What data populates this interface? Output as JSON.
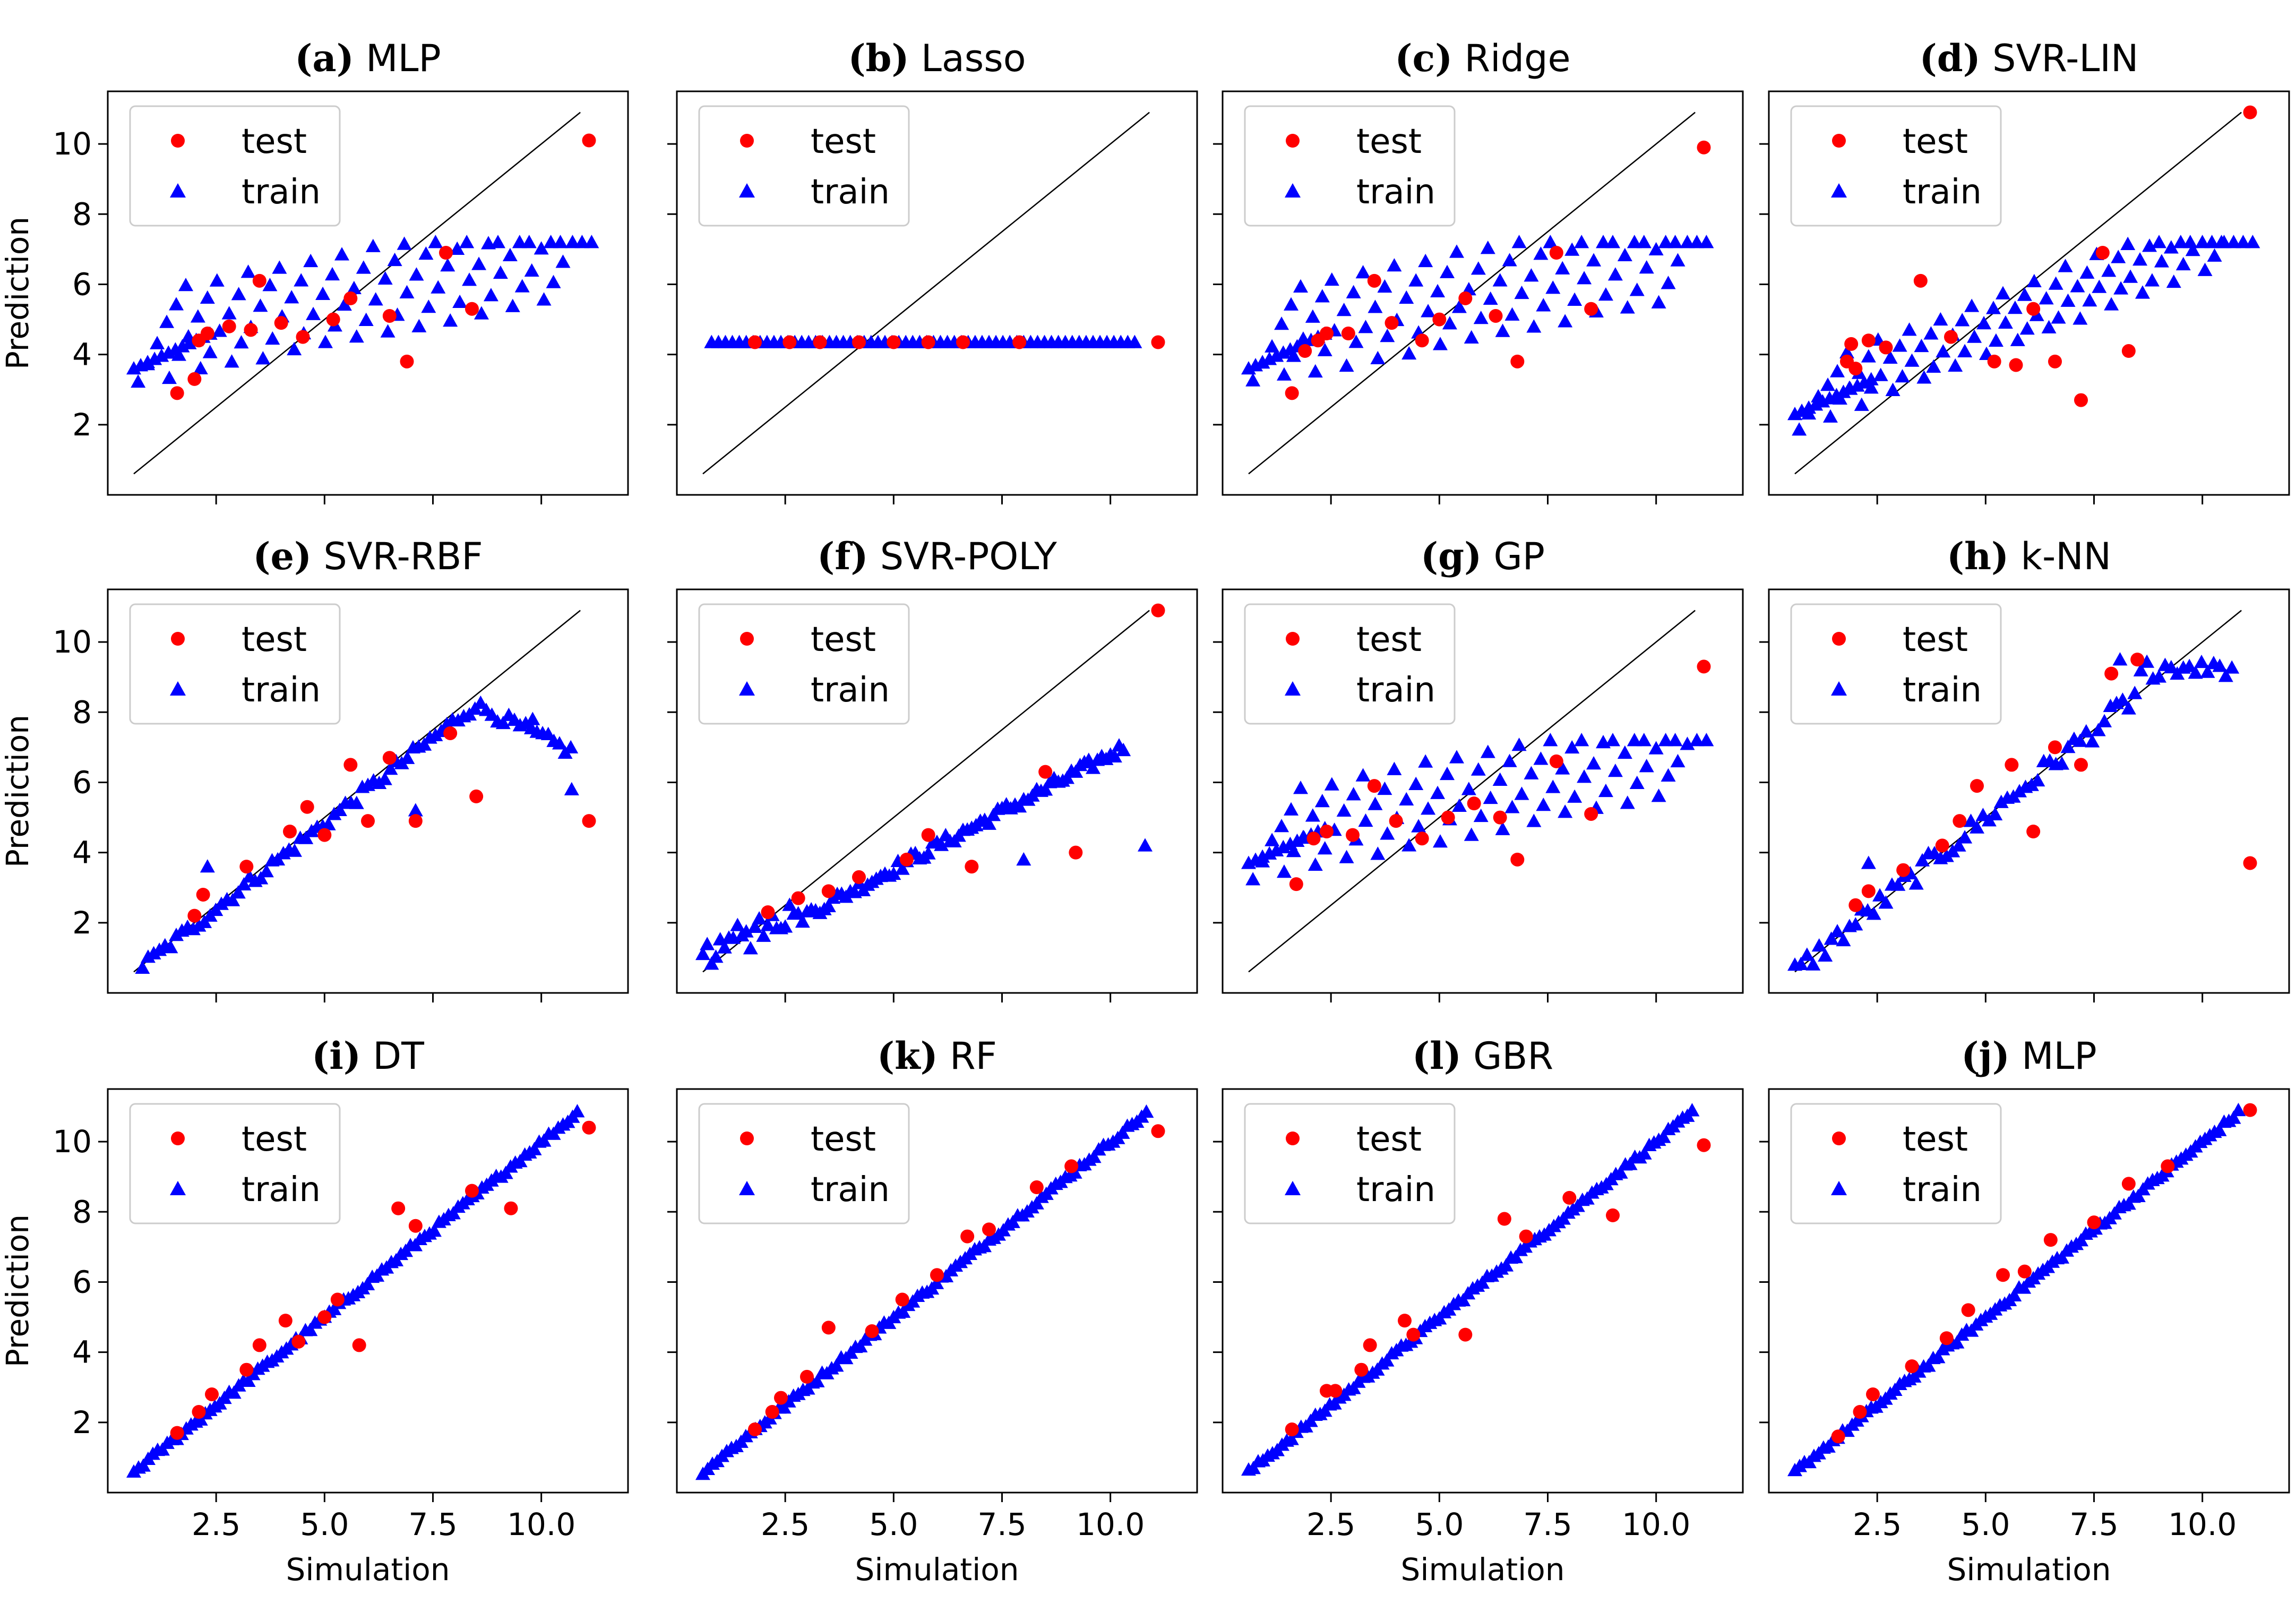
{
  "figure": {
    "shared_xlabel": "Simulation",
    "shared_ylabel": "Prediction",
    "legend": {
      "test_label": "test",
      "train_label": "train",
      "placement": "upper-left"
    },
    "series_colors": {
      "test": "#ff0000",
      "train": "#0000ff"
    },
    "marker_types": {
      "test": "circle",
      "train": "triangle"
    }
  },
  "chart_data": [
    {
      "type": "scatter",
      "letter": "(a)",
      "model": "MLP",
      "pattern": "bands",
      "title": "(a) MLP",
      "xlim": [
        0,
        12
      ],
      "ylim": [
        0,
        11.5
      ],
      "xticks": [
        "2.5",
        "5.0",
        "7.5",
        "10.0"
      ],
      "yticks": [
        "2",
        "4",
        "6",
        "8",
        "10"
      ],
      "show_xticklabels": false,
      "show_yticklabels": true,
      "band_params": {
        "base": 3.2,
        "slope": 0.55,
        "amp": 0.18
      },
      "test_points": [
        [
          2.1,
          4.4
        ],
        [
          2.3,
          4.6
        ],
        [
          1.6,
          2.9
        ],
        [
          2.0,
          3.3
        ],
        [
          2.8,
          4.8
        ],
        [
          3.3,
          4.7
        ],
        [
          3.5,
          6.1
        ],
        [
          4.0,
          4.9
        ],
        [
          4.5,
          4.5
        ],
        [
          5.2,
          5.0
        ],
        [
          5.6,
          5.6
        ],
        [
          6.5,
          5.1
        ],
        [
          6.9,
          3.8
        ],
        [
          7.8,
          6.9
        ],
        [
          8.4,
          5.3
        ],
        [
          11.1,
          10.1
        ]
      ]
    },
    {
      "type": "scatter",
      "letter": "(b)",
      "model": "Lasso",
      "pattern": "flat",
      "title": "(b) Lasso",
      "xlim": [
        0,
        12
      ],
      "ylim": [
        0,
        11.5
      ],
      "xticks": [
        "2.5",
        "5.0",
        "7.5",
        "10.0"
      ],
      "yticks": [
        "2",
        "4",
        "6",
        "8",
        "10"
      ],
      "show_xticklabels": false,
      "show_yticklabels": false,
      "flat_value": 4.35,
      "test_points": [
        [
          1.8,
          4.35
        ],
        [
          2.6,
          4.35
        ],
        [
          3.3,
          4.35
        ],
        [
          4.2,
          4.35
        ],
        [
          5.0,
          4.35
        ],
        [
          5.8,
          4.35
        ],
        [
          6.6,
          4.35
        ],
        [
          7.9,
          4.35
        ],
        [
          11.1,
          4.35
        ]
      ]
    },
    {
      "type": "scatter",
      "letter": "(c)",
      "model": "Ridge",
      "pattern": "bands",
      "title": "(c) Ridge",
      "xlim": [
        0,
        12
      ],
      "ylim": [
        0,
        11.5
      ],
      "xticks": [
        "2.5",
        "5.0",
        "7.5",
        "10.0"
      ],
      "yticks": [
        "2",
        "4",
        "6",
        "8",
        "10"
      ],
      "show_xticklabels": false,
      "show_yticklabels": false,
      "band_params": {
        "base": 3.2,
        "slope": 0.55,
        "amp": 0.18
      },
      "test_points": [
        [
          1.9,
          4.1
        ],
        [
          2.2,
          4.4
        ],
        [
          2.4,
          4.6
        ],
        [
          1.6,
          2.9
        ],
        [
          2.9,
          4.6
        ],
        [
          3.5,
          6.1
        ],
        [
          3.9,
          4.9
        ],
        [
          4.6,
          4.4
        ],
        [
          5.0,
          5.0
        ],
        [
          5.6,
          5.6
        ],
        [
          6.3,
          5.1
        ],
        [
          6.8,
          3.8
        ],
        [
          7.7,
          6.9
        ],
        [
          8.5,
          5.3
        ],
        [
          11.1,
          9.9
        ]
      ]
    },
    {
      "type": "scatter",
      "letter": "(d)",
      "model": "SVR-LIN",
      "pattern": "bands",
      "title": "(d)  SVR-LIN",
      "xlim": [
        0,
        12
      ],
      "ylim": [
        0,
        11.5
      ],
      "xticks": [
        "2.5",
        "5.0",
        "7.5",
        "10.0"
      ],
      "yticks": [
        "2",
        "4",
        "6",
        "8",
        "10"
      ],
      "show_xticklabels": false,
      "show_yticklabels": false,
      "band_params": {
        "base": 1.9,
        "slope": 0.42,
        "amp": 0.35
      },
      "test_points": [
        [
          1.9,
          4.3
        ],
        [
          2.3,
          4.4
        ],
        [
          2.7,
          4.2
        ],
        [
          1.8,
          3.8
        ],
        [
          2.0,
          3.6
        ],
        [
          3.5,
          6.1
        ],
        [
          4.2,
          4.5
        ],
        [
          5.2,
          3.8
        ],
        [
          5.7,
          3.7
        ],
        [
          6.1,
          5.3
        ],
        [
          6.6,
          3.8
        ],
        [
          7.7,
          6.9
        ],
        [
          8.3,
          4.1
        ],
        [
          7.2,
          2.7
        ],
        [
          11.1,
          10.9
        ]
      ]
    },
    {
      "type": "scatter",
      "letter": "(e)",
      "model": "SVR-RBF",
      "pattern": "rbf",
      "title": "(e) SVR-RBF",
      "xlim": [
        0,
        12
      ],
      "ylim": [
        0,
        11.5
      ],
      "xticks": [
        "2.5",
        "5.0",
        "7.5",
        "10.0"
      ],
      "yticks": [
        "2",
        "4",
        "6",
        "8",
        "10"
      ],
      "show_xticklabels": false,
      "show_yticklabels": true,
      "test_points": [
        [
          2.0,
          2.2
        ],
        [
          2.2,
          2.8
        ],
        [
          3.2,
          3.6
        ],
        [
          4.2,
          4.6
        ],
        [
          4.6,
          5.3
        ],
        [
          5.0,
          4.5
        ],
        [
          5.6,
          6.5
        ],
        [
          6.5,
          6.7
        ],
        [
          7.1,
          4.9
        ],
        [
          7.9,
          7.4
        ],
        [
          8.5,
          5.6
        ],
        [
          6.0,
          4.9
        ],
        [
          11.1,
          4.9
        ]
      ]
    },
    {
      "type": "scatter",
      "letter": "(f)",
      "model": "SVR-POLY",
      "pattern": "poly",
      "title": "(f) SVR-POLY",
      "xlim": [
        0,
        12
      ],
      "ylim": [
        0,
        11.5
      ],
      "xticks": [
        "2.5",
        "5.0",
        "7.5",
        "10.0"
      ],
      "yticks": [
        "2",
        "4",
        "6",
        "8",
        "10"
      ],
      "show_xticklabels": false,
      "show_yticklabels": false,
      "test_points": [
        [
          2.1,
          2.3
        ],
        [
          2.8,
          2.7
        ],
        [
          3.5,
          2.9
        ],
        [
          4.2,
          3.3
        ],
        [
          5.3,
          3.8
        ],
        [
          5.8,
          4.5
        ],
        [
          6.8,
          3.6
        ],
        [
          8.5,
          6.3
        ],
        [
          9.2,
          4.0
        ],
        [
          11.1,
          10.9
        ]
      ]
    },
    {
      "type": "scatter",
      "letter": "(g)",
      "model": "GP",
      "pattern": "bands",
      "title": "(g) GP",
      "xlim": [
        0,
        12
      ],
      "ylim": [
        0,
        11.5
      ],
      "xticks": [
        "2.5",
        "5.0",
        "7.5",
        "10.0"
      ],
      "yticks": [
        "2",
        "4",
        "6",
        "8",
        "10"
      ],
      "show_xticklabels": false,
      "show_yticklabels": false,
      "band_params": {
        "base": 3.3,
        "slope": 0.5,
        "amp": 0.18
      },
      "test_points": [
        [
          2.1,
          4.4
        ],
        [
          2.4,
          4.6
        ],
        [
          1.7,
          3.1
        ],
        [
          3.0,
          4.5
        ],
        [
          3.5,
          5.9
        ],
        [
          4.0,
          4.9
        ],
        [
          4.6,
          4.4
        ],
        [
          5.2,
          5.0
        ],
        [
          5.8,
          5.4
        ],
        [
          6.4,
          5.0
        ],
        [
          6.8,
          3.8
        ],
        [
          7.7,
          6.6
        ],
        [
          8.5,
          5.1
        ],
        [
          11.1,
          9.3
        ]
      ]
    },
    {
      "type": "scatter",
      "letter": "(h)",
      "model": "k-NN",
      "pattern": "knn",
      "title": "(h) k-NN",
      "xlim": [
        0,
        12
      ],
      "ylim": [
        0,
        11.5
      ],
      "xticks": [
        "2.5",
        "5.0",
        "7.5",
        "10.0"
      ],
      "yticks": [
        "2",
        "4",
        "6",
        "8",
        "10"
      ],
      "show_xticklabels": false,
      "show_yticklabels": false,
      "test_points": [
        [
          2.0,
          2.5
        ],
        [
          2.3,
          2.9
        ],
        [
          3.1,
          3.5
        ],
        [
          4.0,
          4.2
        ],
        [
          4.4,
          4.9
        ],
        [
          4.8,
          5.9
        ],
        [
          5.6,
          6.5
        ],
        [
          6.1,
          4.6
        ],
        [
          6.6,
          7.0
        ],
        [
          7.2,
          6.5
        ],
        [
          7.9,
          9.1
        ],
        [
          8.5,
          9.5
        ],
        [
          11.1,
          3.7
        ]
      ]
    },
    {
      "type": "scatter",
      "letter": "(i)",
      "model": "DT",
      "pattern": "tight",
      "title": "(i) DT",
      "xlim": [
        0,
        12
      ],
      "ylim": [
        0,
        11.5
      ],
      "xticks": [
        "2.5",
        "5.0",
        "7.5",
        "10.0"
      ],
      "yticks": [
        "2",
        "4",
        "6",
        "8",
        "10"
      ],
      "show_xticklabels": true,
      "show_yticklabels": true,
      "test_points": [
        [
          1.6,
          1.7
        ],
        [
          2.1,
          2.3
        ],
        [
          2.4,
          2.8
        ],
        [
          3.2,
          3.5
        ],
        [
          3.5,
          4.2
        ],
        [
          4.1,
          4.9
        ],
        [
          4.4,
          4.3
        ],
        [
          5.0,
          5.0
        ],
        [
          5.3,
          5.5
        ],
        [
          5.8,
          4.2
        ],
        [
          6.7,
          8.1
        ],
        [
          7.1,
          7.6
        ],
        [
          8.4,
          8.6
        ],
        [
          9.3,
          8.1
        ],
        [
          11.1,
          10.4
        ]
      ]
    },
    {
      "type": "scatter",
      "letter": "(k)",
      "model": "RF",
      "pattern": "tight",
      "title": "(k) RF",
      "xlim": [
        0,
        12
      ],
      "ylim": [
        0,
        11.5
      ],
      "xticks": [
        "2.5",
        "5.0",
        "7.5",
        "10.0"
      ],
      "yticks": [
        "2",
        "4",
        "6",
        "8",
        "10"
      ],
      "show_xticklabels": true,
      "show_yticklabels": false,
      "test_points": [
        [
          1.8,
          1.8
        ],
        [
          2.2,
          2.3
        ],
        [
          2.4,
          2.7
        ],
        [
          3.0,
          3.3
        ],
        [
          3.5,
          4.7
        ],
        [
          4.5,
          4.6
        ],
        [
          5.2,
          5.5
        ],
        [
          6.0,
          6.2
        ],
        [
          6.7,
          7.3
        ],
        [
          7.2,
          7.5
        ],
        [
          8.3,
          8.7
        ],
        [
          9.1,
          9.3
        ],
        [
          11.1,
          10.3
        ]
      ]
    },
    {
      "type": "scatter",
      "letter": "(l)",
      "model": "GBR",
      "pattern": "tight",
      "title": "(l)  GBR",
      "xlim": [
        0,
        12
      ],
      "ylim": [
        0,
        11.5
      ],
      "xticks": [
        "2.5",
        "5.0",
        "7.5",
        "10.0"
      ],
      "yticks": [
        "2",
        "4",
        "6",
        "8",
        "10"
      ],
      "show_xticklabels": true,
      "show_yticklabels": false,
      "test_points": [
        [
          1.6,
          1.8
        ],
        [
          2.4,
          2.9
        ],
        [
          2.6,
          2.9
        ],
        [
          3.2,
          3.5
        ],
        [
          3.4,
          4.2
        ],
        [
          4.2,
          4.9
        ],
        [
          4.4,
          4.5
        ],
        [
          5.6,
          4.5
        ],
        [
          6.5,
          7.8
        ],
        [
          7.0,
          7.3
        ],
        [
          8.0,
          8.4
        ],
        [
          9.0,
          7.9
        ],
        [
          11.1,
          9.9
        ]
      ]
    },
    {
      "type": "scatter",
      "letter": "(j)",
      "model": "MLP",
      "pattern": "tight",
      "title": "(j)  MLP",
      "xlim": [
        0,
        12
      ],
      "ylim": [
        0,
        11.5
      ],
      "xticks": [
        "2.5",
        "5.0",
        "7.5",
        "10.0"
      ],
      "yticks": [
        "2",
        "4",
        "6",
        "8",
        "10"
      ],
      "show_xticklabels": true,
      "show_yticklabels": false,
      "test_points": [
        [
          1.6,
          1.6
        ],
        [
          2.1,
          2.3
        ],
        [
          2.4,
          2.8
        ],
        [
          3.3,
          3.6
        ],
        [
          4.1,
          4.4
        ],
        [
          4.6,
          5.2
        ],
        [
          5.4,
          6.2
        ],
        [
          5.9,
          6.3
        ],
        [
          6.5,
          7.2
        ],
        [
          7.5,
          7.7
        ],
        [
          8.3,
          8.8
        ],
        [
          9.2,
          9.3
        ],
        [
          11.1,
          10.9
        ]
      ]
    }
  ]
}
